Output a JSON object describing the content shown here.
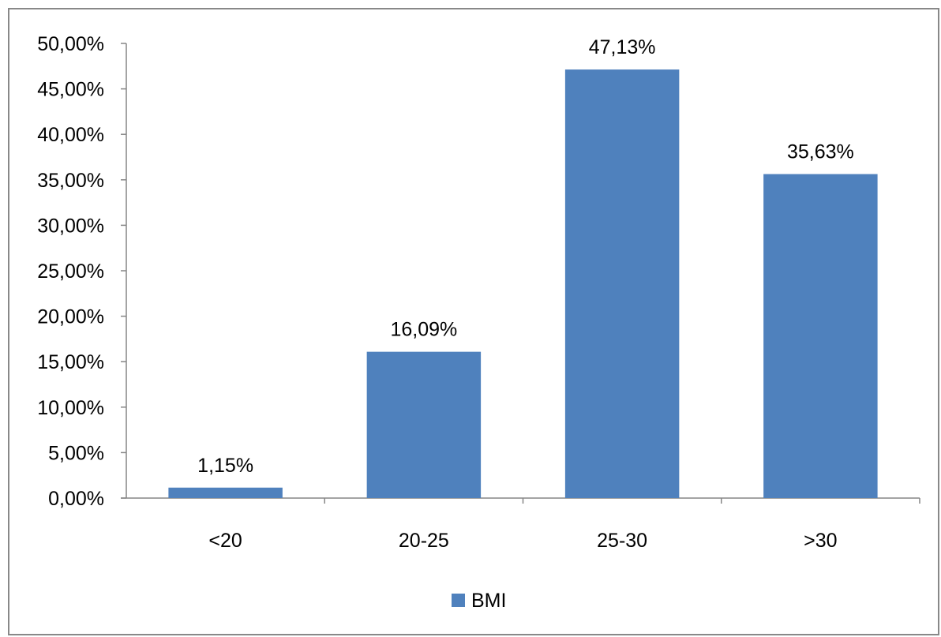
{
  "chart_data": {
    "type": "bar",
    "categories": [
      "<20",
      "20-25",
      "25-30",
      ">30"
    ],
    "series": [
      {
        "name": "BMI",
        "values": [
          1.15,
          16.09,
          47.13,
          35.63
        ],
        "labels": [
          "1,15%",
          "16,09%",
          "47,13%",
          "35,63%"
        ],
        "color": "#4f81bd"
      }
    ],
    "ylim": [
      0,
      50
    ],
    "yticks": [
      0,
      5,
      10,
      15,
      20,
      25,
      30,
      35,
      40,
      45,
      50
    ],
    "ytick_labels": [
      "0,00%",
      "5,00%",
      "10,00%",
      "15,00%",
      "20,00%",
      "25,00%",
      "30,00%",
      "35,00%",
      "40,00%",
      "45,00%",
      "50,00%"
    ],
    "grid": false,
    "legend": "bottom-center",
    "axis_color": "#868686"
  }
}
